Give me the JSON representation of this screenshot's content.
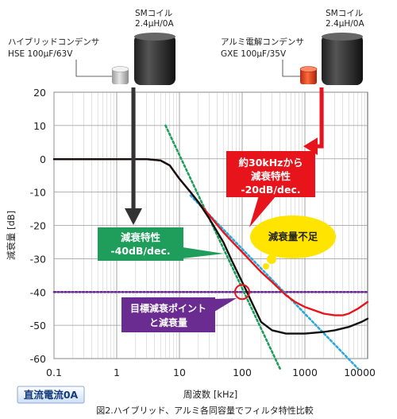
{
  "header": {
    "coil_left": {
      "line1": "SMコイル",
      "line2": "2.4μH/0A"
    },
    "coil_right": {
      "line1": "SMコイル",
      "line2": "2.4μH/0A"
    },
    "cap_left": {
      "line1": "ハイブリッドコンデンサ",
      "line2": "HSE 100μF/63V"
    },
    "cap_right": {
      "line1": "アルミ電解コンデンサ",
      "line2": "GXE 100μF/35V"
    }
  },
  "callouts": {
    "red": {
      "line1": "約30kHzから",
      "line2": "減衰特性",
      "line3": "-20dB/dec."
    },
    "green": {
      "line1": "減衰特性",
      "line2": "-40dB/dec."
    },
    "purple": {
      "line1": "目標減衰ポイント",
      "line2": "と減衰量"
    },
    "bubble": "減衰量不足"
  },
  "footer": {
    "dc_label": "直流電流0A",
    "caption": "図2.ハイブリッド、アルミ各同容量でフィルタ特性比較"
  },
  "colors": {
    "hse_curve": "#111111",
    "gxe_curve": "#e8141b",
    "slope40": "#1e9e5a",
    "slope20": "#2aa9dc",
    "target": "#6a2c91",
    "bubble": "#ffe400"
  },
  "chart_data": {
    "type": "line",
    "xlabel": "周波数 [kHz]",
    "ylabel": "減衰量 [dB]",
    "xscale": "log",
    "xlim": [
      0.1,
      10000
    ],
    "ylim": [
      -60,
      20
    ],
    "grid": true,
    "xticks": [
      {
        "v": 0.1,
        "label": "0.1"
      },
      {
        "v": 1,
        "label": "1"
      },
      {
        "v": 10,
        "label": "10"
      },
      {
        "v": 100,
        "label": "100"
      },
      {
        "v": 1000,
        "label": "1000"
      },
      {
        "v": 10000,
        "label": "10000"
      }
    ],
    "yticks": [
      20,
      10,
      0,
      -10,
      -20,
      -30,
      -40,
      -50,
      -60
    ],
    "series": [
      {
        "key": "hse",
        "x": [
          0.1,
          1,
          3,
          5,
          7,
          10,
          15,
          20,
          30,
          50,
          70,
          100,
          150,
          200,
          300,
          500,
          1000,
          2000,
          3000,
          5000,
          8000,
          10000
        ],
        "y": [
          -0.1,
          -0.1,
          -0.1,
          -0.5,
          -2,
          -6,
          -10,
          -13,
          -18,
          -25,
          -31,
          -37,
          -44,
          -49,
          -51.5,
          -52.5,
          -52.5,
          -52,
          -51.5,
          -50.5,
          -49,
          -48
        ]
      },
      {
        "key": "gxe",
        "x": [
          0.1,
          1,
          3,
          5,
          7,
          10,
          15,
          20,
          30,
          50,
          70,
          100,
          150,
          200,
          300,
          500,
          700,
          1000,
          2000,
          3000,
          4000,
          5000,
          7000,
          10000
        ],
        "y": [
          -0.1,
          -0.1,
          -0.1,
          -0.5,
          -2,
          -6,
          -10,
          -13,
          -17,
          -22,
          -25,
          -28,
          -31.5,
          -34,
          -37,
          -41,
          -43,
          -44.5,
          -46.5,
          -47,
          -47,
          -46.5,
          -45,
          -43
        ]
      },
      {
        "key": "slope40",
        "x": [
          6,
          400
        ],
        "y": [
          10,
          -63
        ]
      },
      {
        "key": "slope20",
        "x": [
          15,
          7000
        ],
        "y": [
          -11,
          -63
        ]
      },
      {
        "key": "target",
        "x": [
          0.1,
          10000
        ],
        "y": [
          -40,
          -40
        ]
      }
    ],
    "target_point": {
      "x": 100,
      "y": -40
    }
  }
}
